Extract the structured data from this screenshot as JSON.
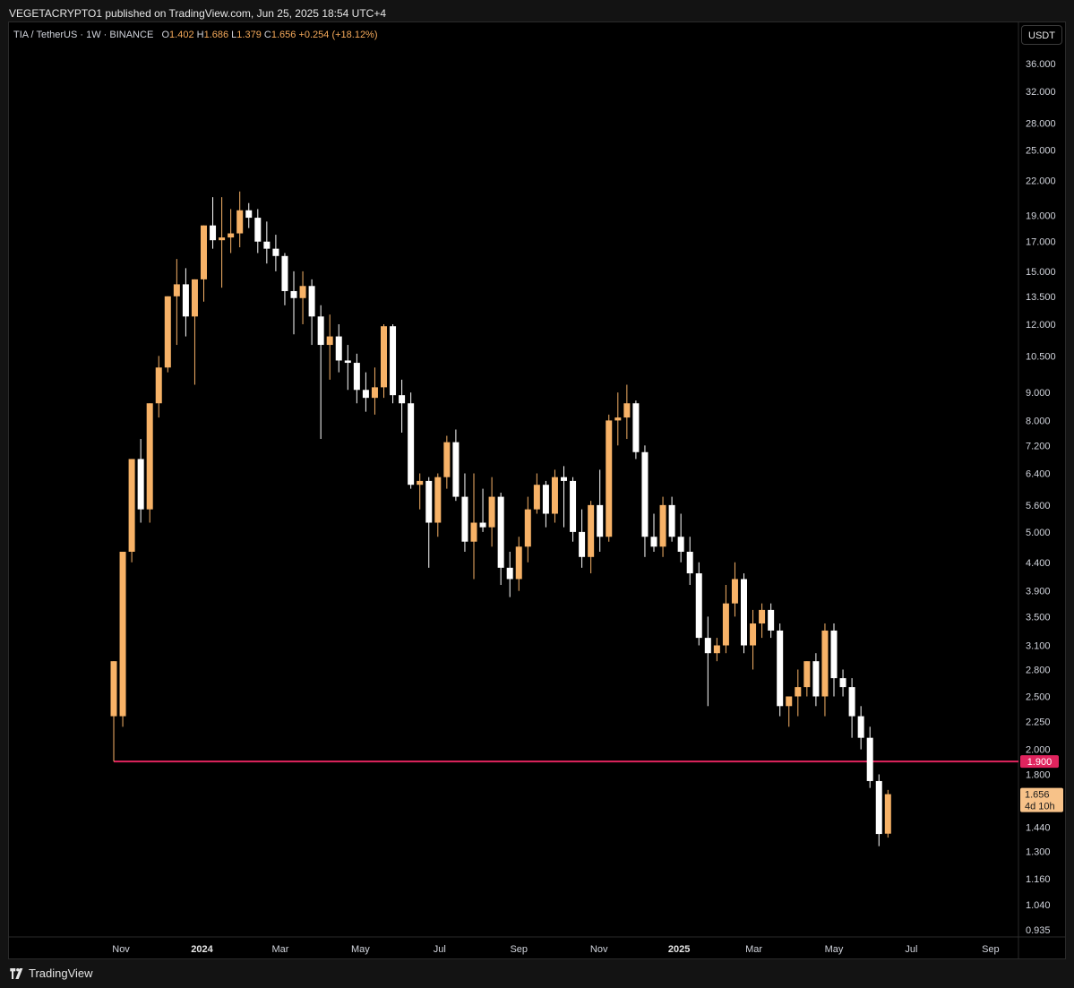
{
  "header": {
    "publish_line": "VEGETACRYPTO1 published on TradingView.com, Jun 25, 2025 18:54 UTC+4"
  },
  "symbol": {
    "name": "TIA / TetherUS · 1W · BINANCE",
    "o_label": "O",
    "o_value": "1.402",
    "h_label": "H",
    "h_value": "1.686",
    "l_label": "L",
    "l_value": "1.379",
    "c_label": "C",
    "c_value": "1.656",
    "change": "+0.254 (+18.12%)"
  },
  "toolbar": {
    "currency_label": "USDT"
  },
  "footer": {
    "brand": "TradingView"
  },
  "colors": {
    "up": "#f7b267",
    "down": "#ffffff",
    "level_line": "#e0245e",
    "last_price_tag": "#f7c289",
    "background": "#000000"
  },
  "price_tags": {
    "level_price": "1.900",
    "last_price": "1.656",
    "countdown": "4d 10h"
  },
  "chart_data": {
    "type": "candlestick",
    "interval": "1W",
    "y_scale": "log",
    "ylim": [
      0.9,
      40.0
    ],
    "y_ticks": [
      "36.000",
      "32.000",
      "28.000",
      "25.000",
      "22.000",
      "19.000",
      "17.000",
      "15.000",
      "13.500",
      "12.000",
      "10.500",
      "9.000",
      "8.000",
      "7.200",
      "6.400",
      "5.600",
      "5.000",
      "4.400",
      "3.900",
      "3.500",
      "3.100",
      "2.800",
      "2.500",
      "2.250",
      "2.000",
      "1.800",
      "1.600",
      "1.440",
      "1.300",
      "1.160",
      "1.040",
      "0.935"
    ],
    "x_ticks": [
      {
        "label": "Nov",
        "index": 0.8
      },
      {
        "label": "2024",
        "index": 9.8,
        "bold": true
      },
      {
        "label": "Mar",
        "index": 18.5
      },
      {
        "label": "May",
        "index": 27.4
      },
      {
        "label": "Jul",
        "index": 36.2
      },
      {
        "label": "Sep",
        "index": 45.0
      },
      {
        "label": "Nov",
        "index": 53.9
      },
      {
        "label": "2025",
        "index": 62.8,
        "bold": true
      },
      {
        "label": "Mar",
        "index": 71.1
      },
      {
        "label": "May",
        "index": 80.0
      },
      {
        "label": "Jul",
        "index": 88.6
      },
      {
        "label": "Sep",
        "index": 97.4
      }
    ],
    "horizontal_level": 1.9,
    "candles": [
      {
        "o": 2.3,
        "h": 2.9,
        "l": 1.9,
        "c": 2.9
      },
      {
        "o": 2.3,
        "h": 4.6,
        "l": 2.2,
        "c": 4.6
      },
      {
        "o": 4.6,
        "h": 6.8,
        "l": 4.4,
        "c": 6.8
      },
      {
        "o": 6.8,
        "h": 7.4,
        "l": 5.2,
        "c": 5.5
      },
      {
        "o": 5.5,
        "h": 8.6,
        "l": 5.2,
        "c": 8.6
      },
      {
        "o": 8.6,
        "h": 10.5,
        "l": 8.1,
        "c": 10.0
      },
      {
        "o": 10.0,
        "h": 13.5,
        "l": 9.8,
        "c": 13.5
      },
      {
        "o": 13.5,
        "h": 15.8,
        "l": 11.0,
        "c": 14.2
      },
      {
        "o": 14.2,
        "h": 15.2,
        "l": 11.4,
        "c": 12.4
      },
      {
        "o": 12.4,
        "h": 14.5,
        "l": 9.3,
        "c": 14.5
      },
      {
        "o": 14.5,
        "h": 18.2,
        "l": 13.2,
        "c": 18.2
      },
      {
        "o": 18.2,
        "h": 20.5,
        "l": 16.5,
        "c": 17.1
      },
      {
        "o": 17.1,
        "h": 20.5,
        "l": 14.0,
        "c": 17.3
      },
      {
        "o": 17.3,
        "h": 19.5,
        "l": 16.2,
        "c": 17.6
      },
      {
        "o": 17.6,
        "h": 21.0,
        "l": 16.6,
        "c": 19.4
      },
      {
        "o": 19.4,
        "h": 20.0,
        "l": 18.0,
        "c": 18.8
      },
      {
        "o": 18.8,
        "h": 19.5,
        "l": 16.2,
        "c": 17.0
      },
      {
        "o": 17.0,
        "h": 18.5,
        "l": 15.5,
        "c": 16.5
      },
      {
        "o": 16.5,
        "h": 17.5,
        "l": 15.0,
        "c": 16.0
      },
      {
        "o": 16.0,
        "h": 16.2,
        "l": 13.0,
        "c": 13.8
      },
      {
        "o": 13.8,
        "h": 15.0,
        "l": 11.5,
        "c": 13.4
      },
      {
        "o": 13.4,
        "h": 15.0,
        "l": 12.0,
        "c": 14.1
      },
      {
        "o": 14.1,
        "h": 14.5,
        "l": 11.0,
        "c": 12.4
      },
      {
        "o": 12.4,
        "h": 13.0,
        "l": 7.4,
        "c": 11.0
      },
      {
        "o": 11.0,
        "h": 12.5,
        "l": 9.5,
        "c": 11.4
      },
      {
        "o": 11.4,
        "h": 12.0,
        "l": 9.8,
        "c": 10.3
      },
      {
        "o": 10.3,
        "h": 11.0,
        "l": 9.1,
        "c": 10.2
      },
      {
        "o": 10.2,
        "h": 10.6,
        "l": 8.6,
        "c": 9.1
      },
      {
        "o": 9.1,
        "h": 9.8,
        "l": 8.3,
        "c": 8.8
      },
      {
        "o": 8.8,
        "h": 10.0,
        "l": 8.2,
        "c": 9.2
      },
      {
        "o": 9.2,
        "h": 12.0,
        "l": 8.8,
        "c": 11.9
      },
      {
        "o": 11.9,
        "h": 12.0,
        "l": 8.6,
        "c": 8.9
      },
      {
        "o": 8.9,
        "h": 9.5,
        "l": 7.6,
        "c": 8.6
      },
      {
        "o": 8.6,
        "h": 9.0,
        "l": 6.0,
        "c": 6.1
      },
      {
        "o": 6.1,
        "h": 6.4,
        "l": 5.5,
        "c": 6.2
      },
      {
        "o": 6.2,
        "h": 6.3,
        "l": 4.3,
        "c": 5.2
      },
      {
        "o": 5.2,
        "h": 6.4,
        "l": 4.9,
        "c": 6.3
      },
      {
        "o": 6.3,
        "h": 7.5,
        "l": 6.0,
        "c": 7.3
      },
      {
        "o": 7.3,
        "h": 7.7,
        "l": 5.7,
        "c": 5.8
      },
      {
        "o": 5.8,
        "h": 6.4,
        "l": 4.6,
        "c": 4.8
      },
      {
        "o": 4.8,
        "h": 6.4,
        "l": 4.1,
        "c": 5.2
      },
      {
        "o": 5.2,
        "h": 6.0,
        "l": 5.0,
        "c": 5.1
      },
      {
        "o": 5.1,
        "h": 6.3,
        "l": 4.7,
        "c": 5.8
      },
      {
        "o": 5.8,
        "h": 5.9,
        "l": 4.0,
        "c": 4.3
      },
      {
        "o": 4.3,
        "h": 4.6,
        "l": 3.8,
        "c": 4.1
      },
      {
        "o": 4.1,
        "h": 4.9,
        "l": 3.9,
        "c": 4.7
      },
      {
        "o": 4.7,
        "h": 5.8,
        "l": 4.4,
        "c": 5.5
      },
      {
        "o": 5.5,
        "h": 6.4,
        "l": 5.4,
        "c": 6.1
      },
      {
        "o": 6.1,
        "h": 6.2,
        "l": 5.1,
        "c": 5.4
      },
      {
        "o": 5.4,
        "h": 6.5,
        "l": 5.2,
        "c": 6.3
      },
      {
        "o": 6.3,
        "h": 6.6,
        "l": 5.1,
        "c": 6.2
      },
      {
        "o": 6.2,
        "h": 6.3,
        "l": 4.8,
        "c": 5.0
      },
      {
        "o": 5.0,
        "h": 5.5,
        "l": 4.3,
        "c": 4.5
      },
      {
        "o": 4.5,
        "h": 5.7,
        "l": 4.2,
        "c": 5.6
      },
      {
        "o": 5.6,
        "h": 6.5,
        "l": 4.6,
        "c": 4.9
      },
      {
        "o": 4.9,
        "h": 8.2,
        "l": 4.8,
        "c": 8.0
      },
      {
        "o": 8.0,
        "h": 9.0,
        "l": 7.2,
        "c": 8.1
      },
      {
        "o": 8.1,
        "h": 9.3,
        "l": 7.4,
        "c": 8.6
      },
      {
        "o": 8.6,
        "h": 8.7,
        "l": 6.8,
        "c": 7.0
      },
      {
        "o": 7.0,
        "h": 7.2,
        "l": 4.5,
        "c": 4.9
      },
      {
        "o": 4.9,
        "h": 5.4,
        "l": 4.6,
        "c": 4.7
      },
      {
        "o": 4.7,
        "h": 5.8,
        "l": 4.5,
        "c": 5.6
      },
      {
        "o": 5.6,
        "h": 5.8,
        "l": 4.8,
        "c": 4.9
      },
      {
        "o": 4.9,
        "h": 5.4,
        "l": 4.4,
        "c": 4.6
      },
      {
        "o": 4.6,
        "h": 4.9,
        "l": 4.0,
        "c": 4.2
      },
      {
        "o": 4.2,
        "h": 4.4,
        "l": 3.1,
        "c": 3.2
      },
      {
        "o": 3.2,
        "h": 3.5,
        "l": 2.4,
        "c": 3.0
      },
      {
        "o": 3.0,
        "h": 3.2,
        "l": 2.9,
        "c": 3.1
      },
      {
        "o": 3.1,
        "h": 4.0,
        "l": 3.0,
        "c": 3.7
      },
      {
        "o": 3.7,
        "h": 4.4,
        "l": 3.5,
        "c": 4.1
      },
      {
        "o": 4.1,
        "h": 4.2,
        "l": 3.0,
        "c": 3.1
      },
      {
        "o": 3.1,
        "h": 3.6,
        "l": 2.8,
        "c": 3.4
      },
      {
        "o": 3.4,
        "h": 3.7,
        "l": 3.2,
        "c": 3.6
      },
      {
        "o": 3.6,
        "h": 3.7,
        "l": 3.2,
        "c": 3.3
      },
      {
        "o": 3.3,
        "h": 3.4,
        "l": 2.3,
        "c": 2.4
      },
      {
        "o": 2.4,
        "h": 2.5,
        "l": 2.2,
        "c": 2.5
      },
      {
        "o": 2.5,
        "h": 2.8,
        "l": 2.3,
        "c": 2.6
      },
      {
        "o": 2.6,
        "h": 2.9,
        "l": 2.5,
        "c": 2.9
      },
      {
        "o": 2.9,
        "h": 3.0,
        "l": 2.4,
        "c": 2.5
      },
      {
        "o": 2.5,
        "h": 3.4,
        "l": 2.3,
        "c": 3.3
      },
      {
        "o": 3.3,
        "h": 3.4,
        "l": 2.5,
        "c": 2.7
      },
      {
        "o": 2.7,
        "h": 2.8,
        "l": 2.5,
        "c": 2.6
      },
      {
        "o": 2.6,
        "h": 2.7,
        "l": 2.1,
        "c": 2.3
      },
      {
        "o": 2.3,
        "h": 2.4,
        "l": 2.0,
        "c": 2.1
      },
      {
        "o": 2.1,
        "h": 2.2,
        "l": 1.7,
        "c": 1.75
      },
      {
        "o": 1.75,
        "h": 1.8,
        "l": 1.33,
        "c": 1.4
      },
      {
        "o": 1.402,
        "h": 1.686,
        "l": 1.379,
        "c": 1.656
      }
    ]
  }
}
